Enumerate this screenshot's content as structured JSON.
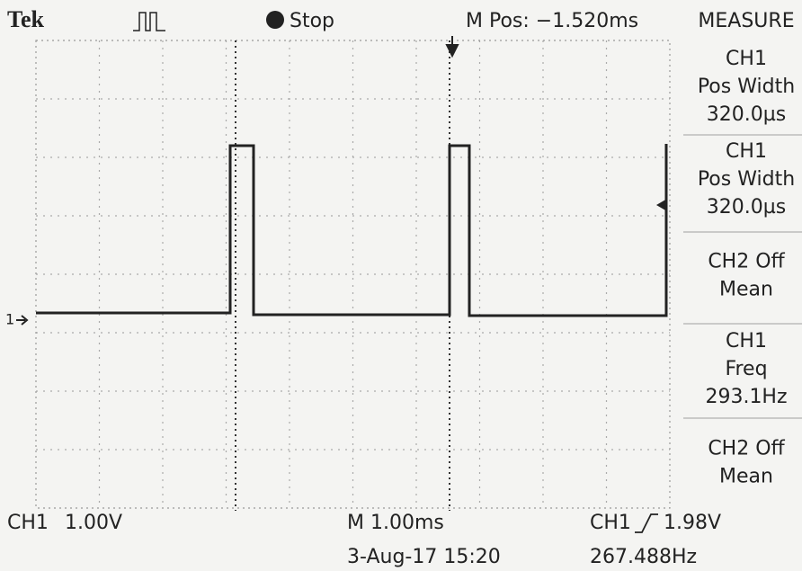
{
  "header": {
    "brand": "Tek",
    "status": "Stop",
    "position": "M Pos: −1.520ms"
  },
  "measure": {
    "title": "MEASURE",
    "items": [
      {
        "lines": [
          "CH1",
          "Pos Width",
          "320.0µs"
        ]
      },
      {
        "lines": [
          "CH1",
          "Pos Width",
          "320.0µs"
        ]
      },
      {
        "lines": [
          "CH2 Off",
          "Mean"
        ]
      },
      {
        "lines": [
          "CH1",
          "Freq",
          "293.1Hz"
        ]
      },
      {
        "lines": [
          "CH2 Off",
          "Mean"
        ]
      }
    ]
  },
  "footer": {
    "channel": "CH1",
    "volts_per_div": "1.00V",
    "timebase": "M 1.00ms",
    "trigger_source": "CH1",
    "trigger_level": "1.98V",
    "date": "3-Aug-17 15:20",
    "trigger_freq": "267.488Hz"
  },
  "markers": {
    "ch1": "1"
  }
}
